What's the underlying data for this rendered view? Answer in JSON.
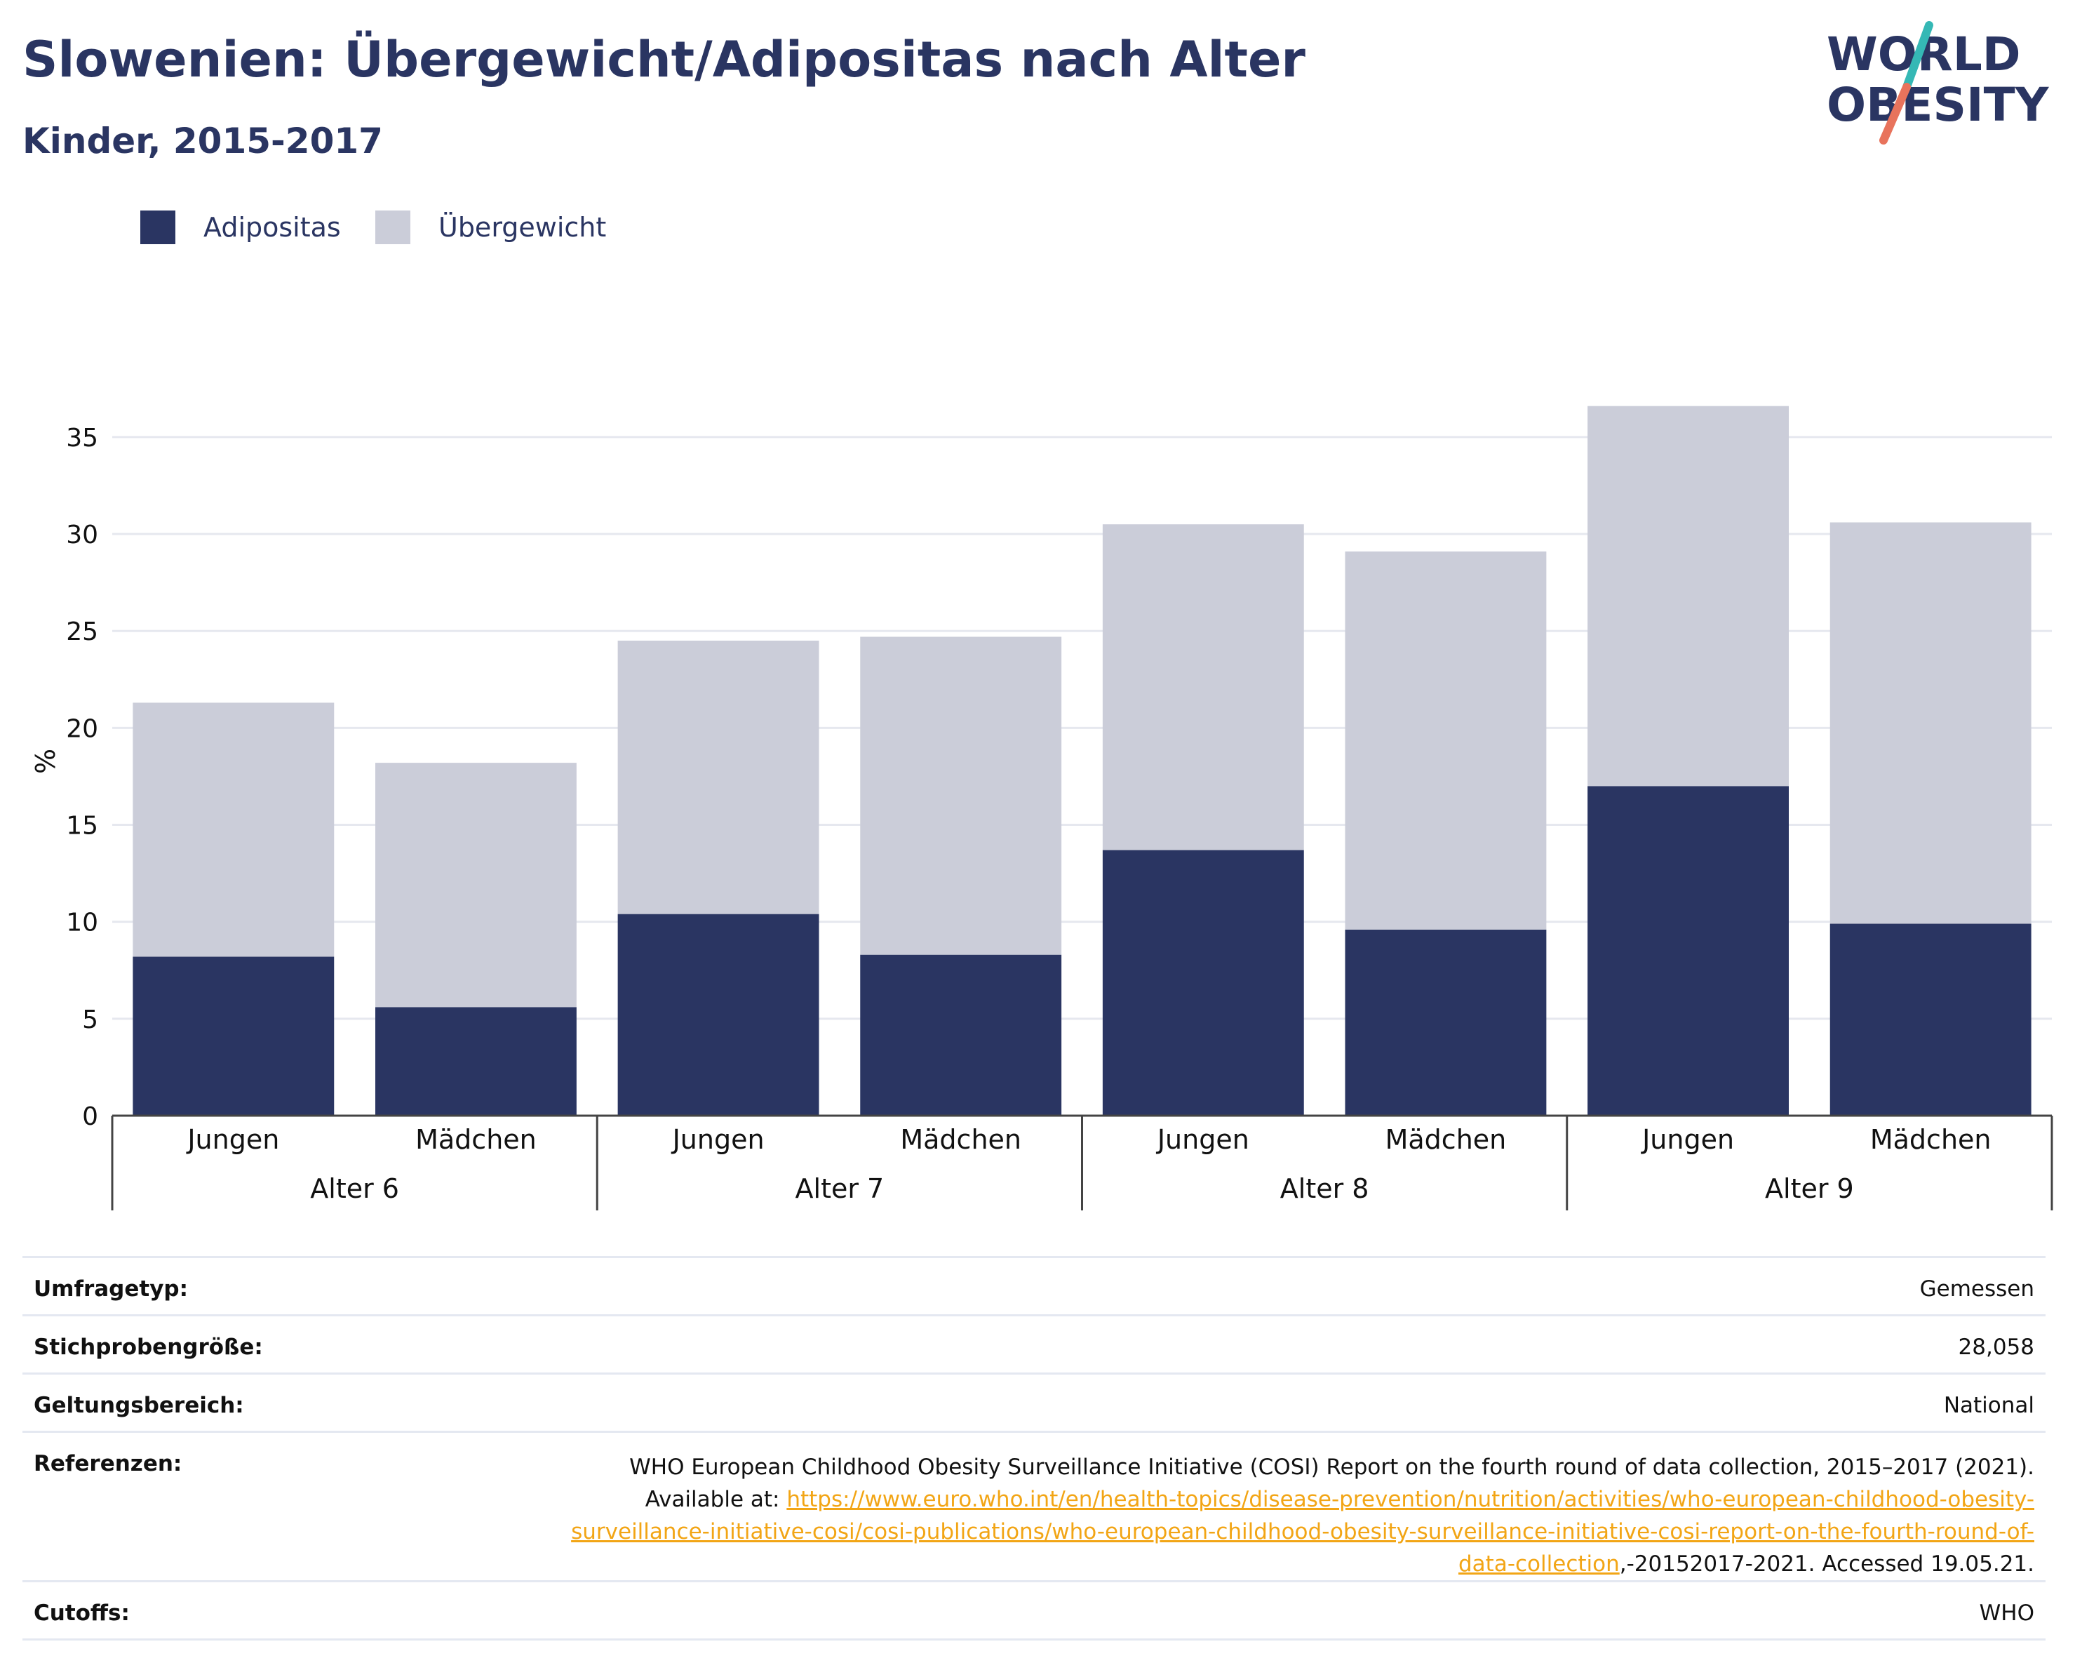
{
  "header": {
    "title": "Slowenien: Übergewicht/Adipositas nach Alter",
    "subtitle": "Kinder, 2015-2017"
  },
  "logo": {
    "line1": "WORLD",
    "line2": "OBESITY",
    "color_text": "#2a3562",
    "color_slash_top": "#35b8b5",
    "color_slash_bottom": "#e8735c"
  },
  "legend": [
    {
      "label": "Adipositas",
      "color": "#2a3562"
    },
    {
      "label": "Übergewicht",
      "color": "#cbcdd9"
    }
  ],
  "chart_data": {
    "type": "bar",
    "stacked": true,
    "ylabel": "%",
    "ylim": [
      0,
      38
    ],
    "yticks": [
      0,
      5,
      10,
      15,
      20,
      25,
      30,
      35
    ],
    "grid": true,
    "legend_position": "top-left",
    "categories": [
      "Jungen",
      "Mädchen",
      "Jungen",
      "Mädchen",
      "Jungen",
      "Mädchen",
      "Jungen",
      "Mädchen"
    ],
    "groups": [
      "Alter 6",
      "Alter 7",
      "Alter 8",
      "Alter 9"
    ],
    "series": [
      {
        "name": "Adipositas",
        "color": "#2a3562",
        "values": [
          8.2,
          5.6,
          10.4,
          8.3,
          13.7,
          9.6,
          17.0,
          9.9
        ]
      },
      {
        "name": "Übergewicht",
        "color": "#cbcdd9",
        "values": [
          13.1,
          12.6,
          14.1,
          16.4,
          16.8,
          19.5,
          19.6,
          20.7
        ]
      }
    ]
  },
  "meta": {
    "survey_type_label": "Umfragetyp:",
    "survey_type_value": "Gemessen",
    "sample_label": "Stichprobengröße:",
    "sample_value": "28,058",
    "scope_label": "Geltungsbereich:",
    "scope_value": "National",
    "references_label": "Referenzen:",
    "references_text": "WHO European Childhood Obesity Surveillance Initiative (COSI) Report on the fourth round of data collection, 2015–2017 (2021). Available at: ",
    "references_link": "https://www.euro.who.int/en/health-topics/disease-prevention/nutrition/activities/who-european-childhood-obesity-surveillance-initiative-cosi/cosi-publications/who-european-childhood-obesity-surveillance-initiative-cosi-report-on-the-fourth-round-of-data-collection",
    "references_suffix": ",-20152017-2021. Accessed 19.05.21.",
    "cutoffs_label": "Cutoffs:",
    "cutoffs_value": "WHO"
  }
}
